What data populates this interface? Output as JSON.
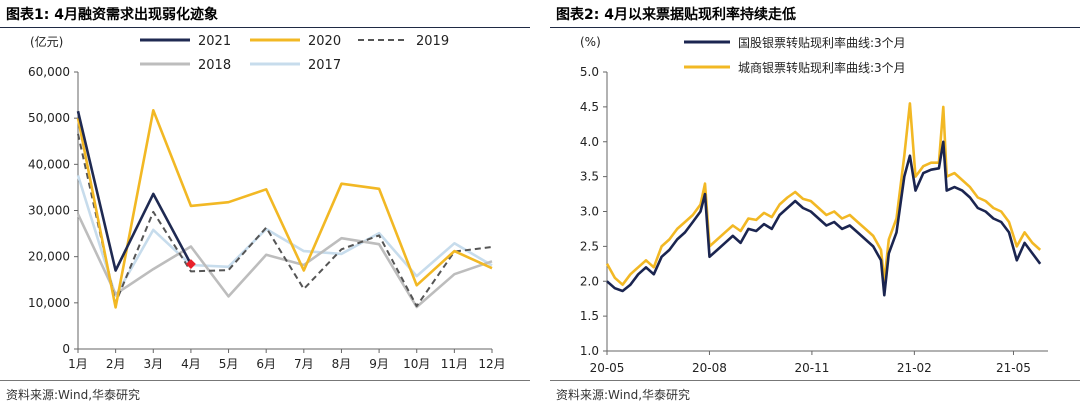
{
  "panels": [
    {
      "title": "图表1:  4月融资需求出现弱化迹象",
      "source": "资料来源:Wind,华泰研究"
    },
    {
      "title": "图表2:  4月以来票据贴现利率持续走低",
      "source": "资料来源:Wind,华泰研究"
    }
  ],
  "chart_data": [
    {
      "type": "line",
      "unit_label": "(亿元)",
      "categories": [
        "1月",
        "2月",
        "3月",
        "4月",
        "5月",
        "6月",
        "7月",
        "8月",
        "9月",
        "10月",
        "11月",
        "12月"
      ],
      "ylim": [
        0,
        60000
      ],
      "yticks": [
        0,
        10000,
        20000,
        30000,
        40000,
        50000,
        60000
      ],
      "ytick_labels": [
        "0",
        "10,000",
        "20,000",
        "30,000",
        "40,000",
        "50,000",
        "60,000"
      ],
      "legend_position": "top",
      "series": [
        {
          "name": "2021",
          "color": "#1f2a52",
          "style": "solid",
          "values": [
            51500,
            17000,
            33600,
            18400,
            null,
            null,
            null,
            null,
            null,
            null,
            null,
            null
          ]
        },
        {
          "name": "2020",
          "color": "#f2b824",
          "style": "solid",
          "values": [
            50000,
            9000,
            51700,
            31000,
            31800,
            34600,
            17000,
            35800,
            34700,
            13800,
            21200,
            17500
          ]
        },
        {
          "name": "2019",
          "color": "#555555",
          "style": "dashed",
          "values": [
            46600,
            10000,
            29700,
            16800,
            17100,
            26300,
            13000,
            21600,
            24600,
            9300,
            21100,
            22100
          ]
        },
        {
          "name": "2018",
          "color": "#bdbdbd",
          "style": "solid",
          "values": [
            29200,
            11900,
            17300,
            22200,
            11400,
            20400,
            18200,
            24000,
            22700,
            9100,
            16200,
            19000
          ]
        },
        {
          "name": "2017",
          "color": "#c7dcec",
          "style": "solid",
          "values": [
            37600,
            11500,
            25800,
            18200,
            17800,
            26000,
            21200,
            20600,
            25100,
            15800,
            22900,
            18100
          ]
        }
      ],
      "highlight_point": {
        "category": "4月",
        "value": 18400,
        "color": "#e8202a"
      }
    },
    {
      "type": "line",
      "unit_label": "(%)",
      "ylim": [
        1.0,
        5.0
      ],
      "yticks": [
        1.0,
        1.5,
        2.0,
        2.5,
        3.0,
        3.5,
        4.0,
        4.5,
        5.0
      ],
      "ytick_labels": [
        "1.0",
        "1.5",
        "2.0",
        "2.5",
        "3.0",
        "3.5",
        "4.0",
        "4.5",
        "5.0"
      ],
      "xlim": [
        "2020-05-01",
        "2021-06-01"
      ],
      "xticks": [
        "2020-05-01",
        "2020-08-01",
        "2020-11-01",
        "2021-02-01",
        "2021-05-01"
      ],
      "xtick_labels": [
        "20-05",
        "20-08",
        "20-11",
        "21-02",
        "21-05"
      ],
      "legend_position": "top-left",
      "series": [
        {
          "name": "国股银票转贴现利率曲线:3个月",
          "color": "#1b2550",
          "width": 2.6,
          "points": [
            [
              "2020-05-01",
              2.0
            ],
            [
              "2020-05-08",
              1.9
            ],
            [
              "2020-05-15",
              1.86
            ],
            [
              "2020-05-22",
              1.95
            ],
            [
              "2020-05-29",
              2.1
            ],
            [
              "2020-06-05",
              2.2
            ],
            [
              "2020-06-12",
              2.1
            ],
            [
              "2020-06-19",
              2.35
            ],
            [
              "2020-06-26",
              2.45
            ],
            [
              "2020-07-03",
              2.6
            ],
            [
              "2020-07-10",
              2.7
            ],
            [
              "2020-07-17",
              2.85
            ],
            [
              "2020-07-24",
              3.0
            ],
            [
              "2020-07-28",
              3.25
            ],
            [
              "2020-08-01",
              2.35
            ],
            [
              "2020-08-08",
              2.45
            ],
            [
              "2020-08-15",
              2.55
            ],
            [
              "2020-08-22",
              2.65
            ],
            [
              "2020-08-29",
              2.55
            ],
            [
              "2020-09-05",
              2.75
            ],
            [
              "2020-09-12",
              2.72
            ],
            [
              "2020-09-19",
              2.82
            ],
            [
              "2020-09-26",
              2.75
            ],
            [
              "2020-10-03",
              2.95
            ],
            [
              "2020-10-10",
              3.05
            ],
            [
              "2020-10-17",
              3.15
            ],
            [
              "2020-10-24",
              3.05
            ],
            [
              "2020-10-31",
              3.0
            ],
            [
              "2020-11-07",
              2.9
            ],
            [
              "2020-11-14",
              2.8
            ],
            [
              "2020-11-21",
              2.85
            ],
            [
              "2020-11-28",
              2.75
            ],
            [
              "2020-12-05",
              2.8
            ],
            [
              "2020-12-12",
              2.7
            ],
            [
              "2020-12-19",
              2.6
            ],
            [
              "2020-12-26",
              2.5
            ],
            [
              "2021-01-02",
              2.3
            ],
            [
              "2021-01-05",
              1.8
            ],
            [
              "2021-01-09",
              2.4
            ],
            [
              "2021-01-16",
              2.7
            ],
            [
              "2021-01-23",
              3.5
            ],
            [
              "2021-01-28",
              3.8
            ],
            [
              "2021-02-02",
              3.3
            ],
            [
              "2021-02-09",
              3.55
            ],
            [
              "2021-02-16",
              3.6
            ],
            [
              "2021-02-23",
              3.62
            ],
            [
              "2021-02-27",
              4.0
            ],
            [
              "2021-03-02",
              3.3
            ],
            [
              "2021-03-09",
              3.35
            ],
            [
              "2021-03-16",
              3.3
            ],
            [
              "2021-03-23",
              3.2
            ],
            [
              "2021-03-30",
              3.05
            ],
            [
              "2021-04-06",
              3.0
            ],
            [
              "2021-04-13",
              2.9
            ],
            [
              "2021-04-20",
              2.85
            ],
            [
              "2021-04-27",
              2.7
            ],
            [
              "2021-05-04",
              2.3
            ],
            [
              "2021-05-11",
              2.55
            ],
            [
              "2021-05-18",
              2.4
            ],
            [
              "2021-05-25",
              2.25
            ]
          ]
        },
        {
          "name": "城商银票转贴现利率曲线:3个月",
          "color": "#f2b824",
          "width": 2.6,
          "points": [
            [
              "2020-05-01",
              2.25
            ],
            [
              "2020-05-08",
              2.05
            ],
            [
              "2020-05-15",
              1.95
            ],
            [
              "2020-05-22",
              2.1
            ],
            [
              "2020-05-29",
              2.2
            ],
            [
              "2020-06-05",
              2.3
            ],
            [
              "2020-06-12",
              2.2
            ],
            [
              "2020-06-19",
              2.5
            ],
            [
              "2020-06-26",
              2.6
            ],
            [
              "2020-07-03",
              2.75
            ],
            [
              "2020-07-10",
              2.85
            ],
            [
              "2020-07-17",
              2.95
            ],
            [
              "2020-07-24",
              3.1
            ],
            [
              "2020-07-28",
              3.4
            ],
            [
              "2020-08-01",
              2.5
            ],
            [
              "2020-08-08",
              2.6
            ],
            [
              "2020-08-15",
              2.7
            ],
            [
              "2020-08-22",
              2.8
            ],
            [
              "2020-08-29",
              2.72
            ],
            [
              "2020-09-05",
              2.9
            ],
            [
              "2020-09-12",
              2.88
            ],
            [
              "2020-09-19",
              2.98
            ],
            [
              "2020-09-26",
              2.92
            ],
            [
              "2020-10-03",
              3.1
            ],
            [
              "2020-10-10",
              3.2
            ],
            [
              "2020-10-17",
              3.28
            ],
            [
              "2020-10-24",
              3.18
            ],
            [
              "2020-10-31",
              3.15
            ],
            [
              "2020-11-07",
              3.05
            ],
            [
              "2020-11-14",
              2.95
            ],
            [
              "2020-11-21",
              3.0
            ],
            [
              "2020-11-28",
              2.9
            ],
            [
              "2020-12-05",
              2.95
            ],
            [
              "2020-12-12",
              2.85
            ],
            [
              "2020-12-19",
              2.75
            ],
            [
              "2020-12-26",
              2.65
            ],
            [
              "2021-01-02",
              2.45
            ],
            [
              "2021-01-05",
              2.0
            ],
            [
              "2021-01-09",
              2.6
            ],
            [
              "2021-01-16",
              2.9
            ],
            [
              "2021-01-23",
              3.8
            ],
            [
              "2021-01-28",
              4.55
            ],
            [
              "2021-02-02",
              3.5
            ],
            [
              "2021-02-09",
              3.65
            ],
            [
              "2021-02-16",
              3.7
            ],
            [
              "2021-02-23",
              3.7
            ],
            [
              "2021-02-27",
              4.5
            ],
            [
              "2021-03-02",
              3.5
            ],
            [
              "2021-03-09",
              3.55
            ],
            [
              "2021-03-16",
              3.45
            ],
            [
              "2021-03-23",
              3.35
            ],
            [
              "2021-03-30",
              3.2
            ],
            [
              "2021-04-06",
              3.15
            ],
            [
              "2021-04-13",
              3.05
            ],
            [
              "2021-04-20",
              3.0
            ],
            [
              "2021-04-27",
              2.85
            ],
            [
              "2021-05-04",
              2.5
            ],
            [
              "2021-05-11",
              2.7
            ],
            [
              "2021-05-18",
              2.55
            ],
            [
              "2021-05-25",
              2.45
            ]
          ]
        }
      ]
    }
  ]
}
